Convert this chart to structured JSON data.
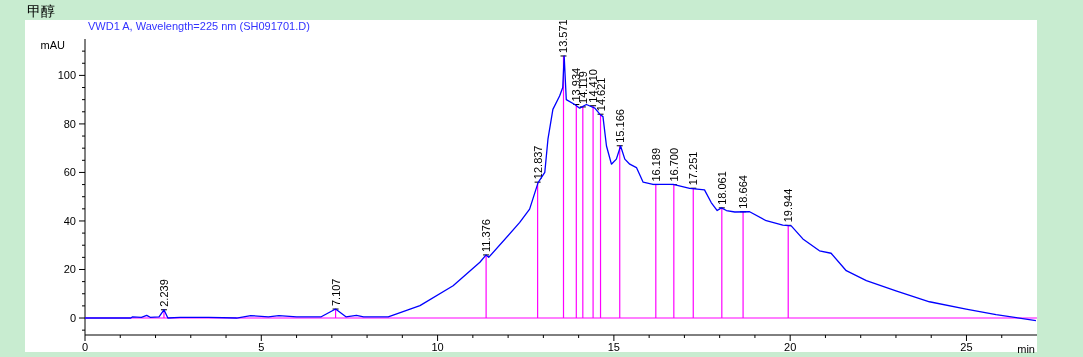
{
  "chart_data": {
    "type": "line",
    "title": "甲醇",
    "subtitle": "VWD1 A, Wavelength=225 nm (SH091701.D)",
    "xlabel": "min",
    "ylabel": "mAU",
    "xlim": [
      0,
      27
    ],
    "ylim": [
      -7,
      115
    ],
    "xticks": [
      0,
      {
        "value": 1,
        "label": null
      },
      {
        "value": 2,
        "label": null
      },
      {
        "value": 3,
        "label": null
      },
      {
        "value": 4,
        "label": null
      },
      5,
      {
        "value": 6,
        "label": null
      },
      {
        "value": 7,
        "label": null
      },
      {
        "value": 8,
        "label": null
      },
      {
        "value": 9,
        "label": null
      },
      10,
      {
        "value": 11,
        "label": null
      },
      {
        "value": 12,
        "label": null
      },
      {
        "value": 13,
        "label": null
      },
      {
        "value": 14,
        "label": null
      },
      15,
      {
        "value": 16,
        "label": null
      },
      {
        "value": 17,
        "label": null
      },
      {
        "value": 18,
        "label": null
      },
      {
        "value": 19,
        "label": null
      },
      20,
      {
        "value": 21,
        "label": null
      },
      {
        "value": 22,
        "label": null
      },
      {
        "value": 23,
        "label": null
      },
      {
        "value": 24,
        "label": null
      },
      25,
      {
        "value": 26,
        "label": null
      }
    ],
    "yticks": [
      {
        "value": -5,
        "label": null
      },
      0,
      {
        "value": 5,
        "label": null
      },
      {
        "value": 10,
        "label": null
      },
      {
        "value": 15,
        "label": null
      },
      20,
      {
        "value": 25,
        "label": null
      },
      {
        "value": 30,
        "label": null
      },
      {
        "value": 35,
        "label": null
      },
      40,
      {
        "value": 45,
        "label": null
      },
      {
        "value": 50,
        "label": null
      },
      {
        "value": 55,
        "label": null
      },
      60,
      {
        "value": 65,
        "label": null
      },
      {
        "value": 70,
        "label": null
      },
      {
        "value": 75,
        "label": null
      },
      80,
      {
        "value": 85,
        "label": null
      },
      {
        "value": 90,
        "label": null
      },
      {
        "value": 95,
        "label": null
      },
      100,
      {
        "value": 105,
        "label": null
      },
      {
        "value": 110,
        "label": null
      }
    ],
    "line_style": "solid",
    "marker": "none",
    "series": [
      {
        "color": "#0000ff",
        "x": [
          0,
          1.3,
          1.35,
          1.6,
          1.75,
          1.85,
          2.1,
          2.239,
          2.35,
          2.7,
          3.5,
          4.3,
          4.7,
          5.2,
          5.5,
          6.0,
          6.7,
          7.107,
          7.4,
          7.7,
          7.9,
          8.6,
          9.0,
          9.5,
          10.44,
          11.2,
          11.376,
          11.45,
          12.33,
          12.61,
          12.85,
          13.04,
          13.13,
          13.27,
          13.46,
          13.55,
          13.59,
          13.65,
          13.89,
          14.03,
          14.22,
          14.46,
          14.6,
          14.69,
          14.79,
          14.93,
          15.07,
          15.19,
          15.31,
          15.45,
          15.64,
          15.83,
          16.11,
          16.68,
          17.15,
          17.57,
          17.76,
          17.93,
          18.05,
          18.19,
          18.43,
          18.85,
          19.32,
          19.79,
          20.03,
          20.36,
          20.83,
          21.16,
          21.59,
          22.16,
          23.0,
          23.95,
          24.99,
          25.84,
          26.97
        ],
        "values": [
          0,
          0,
          0.5,
          0.3,
          1.1,
          0.3,
          0.5,
          3.4,
          0,
          0.3,
          0.3,
          0,
          1,
          0.5,
          1,
          0.5,
          0.5,
          3.7,
          0.5,
          1.1,
          0.5,
          0.5,
          2.5,
          5.1,
          13.3,
          23,
          26,
          25,
          39.4,
          44.9,
          55.8,
          60,
          73.7,
          86,
          91.5,
          95,
          108,
          90,
          88,
          86.5,
          88,
          86.5,
          84,
          83,
          70.9,
          63.4,
          65.5,
          70.9,
          65.5,
          63.4,
          62,
          56,
          55.1,
          55.1,
          53.4,
          52.8,
          47.6,
          44.3,
          45.4,
          44.3,
          43.7,
          43.8,
          40.1,
          38.3,
          38,
          32.6,
          27.7,
          26.7,
          19.5,
          15.4,
          11.2,
          6.7,
          3.7,
          1.4,
          -1.1
        ]
      }
    ],
    "ref_lines": [
      {
        "axis": "y",
        "value": 0,
        "color": "#ff00ff"
      }
    ],
    "annotations": [
      {
        "text": "2.239",
        "x": 2.239,
        "y": 3.4
      },
      {
        "text": "7.107",
        "x": 7.107,
        "y": 3.7
      },
      {
        "text": "11.376",
        "x": 11.376,
        "y": 26
      },
      {
        "text": "12.837",
        "x": 12.837,
        "y": 56
      },
      {
        "text": "13.571",
        "x": 13.571,
        "y": 108
      },
      {
        "text": "13.934",
        "x": 13.934,
        "y": 88
      },
      {
        "text": "14.119",
        "x": 14.119,
        "y": 87
      },
      {
        "text": "14.410",
        "x": 14.41,
        "y": 87.5
      },
      {
        "text": "14.621",
        "x": 14.621,
        "y": 84
      },
      {
        "text": "15.166",
        "x": 15.166,
        "y": 71
      },
      {
        "text": "16.189",
        "x": 16.189,
        "y": 55
      },
      {
        "text": "16.700",
        "x": 16.7,
        "y": 55
      },
      {
        "text": "17.251",
        "x": 17.251,
        "y": 53.5
      },
      {
        "text": "18.061",
        "x": 18.061,
        "y": 45.4
      },
      {
        "text": "18.664",
        "x": 18.664,
        "y": 43.8
      },
      {
        "text": "19.944",
        "x": 19.944,
        "y": 38.2
      }
    ]
  }
}
